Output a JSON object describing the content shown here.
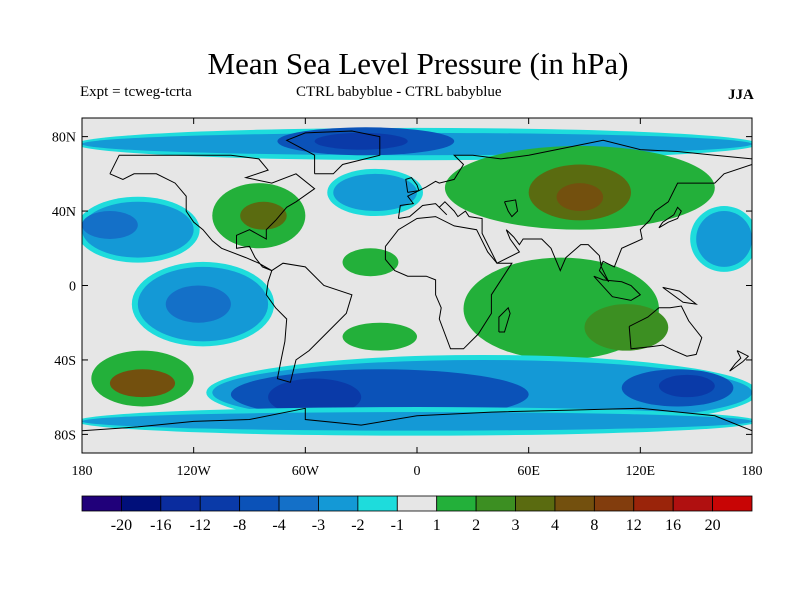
{
  "title": "Mean Sea Level Pressure (in hPa)",
  "experiment_label": "Expt = tcweg-tcrta",
  "difference_label": "CTRL babyblue - CTRL babyblue",
  "season": "JJA",
  "map": {
    "lon_range": [
      -180,
      180
    ],
    "lat_range": [
      -90,
      90
    ],
    "lat_ticks": [
      {
        "lat": 80,
        "label": "80N"
      },
      {
        "lat": 40,
        "label": "40N"
      },
      {
        "lat": 0,
        "label": "0"
      },
      {
        "lat": -40,
        "label": "40S"
      },
      {
        "lat": -80,
        "label": "80S"
      }
    ],
    "lon_ticks": [
      {
        "lon": -180,
        "label": "180"
      },
      {
        "lon": -120,
        "label": "120W"
      },
      {
        "lon": -60,
        "label": "60W"
      },
      {
        "lon": 0,
        "label": "0"
      },
      {
        "lon": 60,
        "label": "60E"
      },
      {
        "lon": 120,
        "label": "120E"
      },
      {
        "lon": 180,
        "label": "180"
      }
    ],
    "background_level_color": "#e6e6e6",
    "anomaly_regions": [
      {
        "name": "arctic-band",
        "lon": [
          -180,
          180
        ],
        "lat": [
          70,
          82
        ],
        "level": -2
      },
      {
        "name": "greenland-low",
        "lon": [
          -75,
          20
        ],
        "lat": [
          70,
          85
        ],
        "level": -4
      },
      {
        "name": "greenland-low-core",
        "lon": [
          -55,
          -5
        ],
        "lat": [
          73,
          82
        ],
        "level": -8
      },
      {
        "name": "north-pacific-low",
        "lon": [
          -180,
          -120
        ],
        "lat": [
          15,
          45
        ],
        "level": -2
      },
      {
        "name": "north-pacific-low-core",
        "lon": [
          -180,
          -150
        ],
        "lat": [
          25,
          40
        ],
        "level": -3
      },
      {
        "name": "north-atlantic-low",
        "lon": [
          -45,
          0
        ],
        "lat": [
          40,
          60
        ],
        "level": -2
      },
      {
        "name": "east-pacific-low",
        "lon": [
          -150,
          -80
        ],
        "lat": [
          -30,
          10
        ],
        "level": -2
      },
      {
        "name": "east-pacific-low-core",
        "lon": [
          -135,
          -100
        ],
        "lat": [
          -20,
          0
        ],
        "level": -3
      },
      {
        "name": "indian-ocean-low",
        "lon": [
          50,
          110
        ],
        "lat": [
          -30,
          -5
        ],
        "level": -2
      },
      {
        "name": "west-pacific-low",
        "lon": [
          150,
          180
        ],
        "lat": [
          10,
          40
        ],
        "level": -2
      },
      {
        "name": "north-america-high",
        "lon": [
          -110,
          -60
        ],
        "lat": [
          20,
          55
        ],
        "level": 2
      },
      {
        "name": "north-america-high-core",
        "lon": [
          -95,
          -70
        ],
        "lat": [
          30,
          45
        ],
        "level": 4
      },
      {
        "name": "eurasia-high",
        "lon": [
          15,
          160
        ],
        "lat": [
          30,
          75
        ],
        "level": 2
      },
      {
        "name": "eurasia-high-mid",
        "lon": [
          60,
          115
        ],
        "lat": [
          35,
          65
        ],
        "level": 4
      },
      {
        "name": "eurasia-high-core",
        "lon": [
          75,
          100
        ],
        "lat": [
          40,
          55
        ],
        "level": 8
      },
      {
        "name": "atlantic-equatorial-high",
        "lon": [
          -40,
          -10
        ],
        "lat": [
          5,
          20
        ],
        "level": 2
      },
      {
        "name": "tropical-indian-high",
        "lon": [
          25,
          130
        ],
        "lat": [
          -40,
          15
        ],
        "level": 2
      },
      {
        "name": "australia-high",
        "lon": [
          90,
          135
        ],
        "lat": [
          -35,
          -10
        ],
        "level": 3
      },
      {
        "name": "south-atlantic-high",
        "lon": [
          -40,
          0
        ],
        "lat": [
          -35,
          -20
        ],
        "level": 2
      },
      {
        "name": "south-pacific-high",
        "lon": [
          -175,
          -120
        ],
        "lat": [
          -65,
          -35
        ],
        "level": 2
      },
      {
        "name": "south-pacific-high-core",
        "lon": [
          -165,
          -130
        ],
        "lat": [
          -60,
          -45
        ],
        "level": 8
      },
      {
        "name": "southern-ocean-low",
        "lon": [
          -110,
          180
        ],
        "lat": [
          -75,
          -40
        ],
        "level": -2
      },
      {
        "name": "southern-ocean-low-mid",
        "lon": [
          -100,
          60
        ],
        "lat": [
          -72,
          -45
        ],
        "level": -4
      },
      {
        "name": "southern-ocean-low-core",
        "lon": [
          -80,
          -30
        ],
        "lat": [
          -70,
          -50
        ],
        "level": -8
      },
      {
        "name": "southeast-indian-low",
        "lon": [
          110,
          170
        ],
        "lat": [
          -65,
          -45
        ],
        "level": -4
      },
      {
        "name": "southeast-indian-low-core",
        "lon": [
          130,
          160
        ],
        "lat": [
          -60,
          -48
        ],
        "level": -8
      },
      {
        "name": "antarctic-ring",
        "lon": [
          -180,
          180
        ],
        "lat": [
          -78,
          -68
        ],
        "level": -2
      }
    ]
  },
  "colorbar": {
    "colors": [
      "#20007a",
      "#000f7a",
      "#0a2c9e",
      "#0a3aa8",
      "#0b52b8",
      "#1470c8",
      "#1499d6",
      "#1edcdc",
      "#e6e6e6",
      "#23b03a",
      "#3c8f22",
      "#5a6b10",
      "#73500e",
      "#823d0d",
      "#9a240a",
      "#b01010",
      "#c80505"
    ],
    "labels": [
      "-20",
      "-16",
      "-12",
      "-8",
      "-4",
      "-3",
      "-2",
      "-1",
      "1",
      "2",
      "3",
      "4",
      "8",
      "12",
      "16",
      "20"
    ]
  },
  "level_colors": {
    "-8": "#0a3aa8",
    "-4": "#0b52b8",
    "-3": "#1470c8",
    "-2": "#1499d6",
    "2": "#23b03a",
    "3": "#3c8f22",
    "4": "#5a6b10",
    "8": "#73500e",
    "edge": "#1edcdc"
  }
}
